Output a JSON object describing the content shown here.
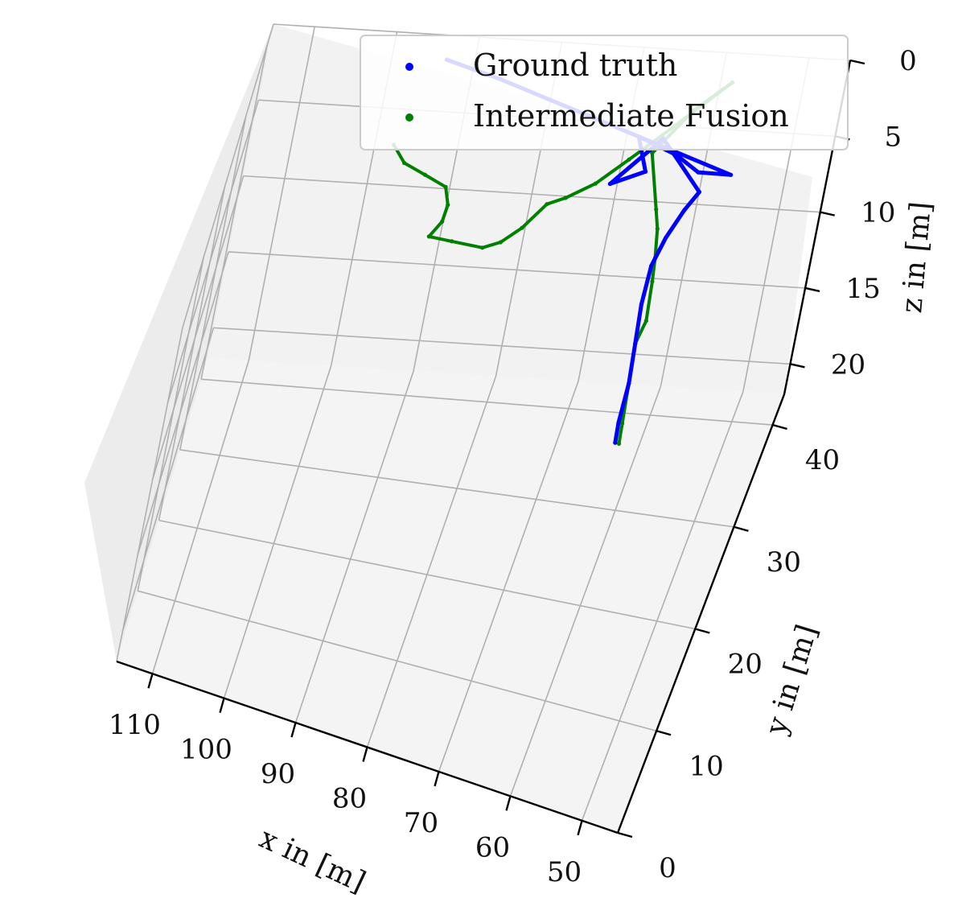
{
  "chart_data": {
    "type": "line3d",
    "title": "",
    "xlabel": "x in [m]",
    "ylabel": "y in [m]",
    "zlabel": "z in [m]",
    "x_ticks": [
      "110",
      "100",
      "90",
      "80",
      "70",
      "60",
      "50"
    ],
    "y_ticks": [
      "0",
      "10",
      "20",
      "30",
      "40"
    ],
    "z_ticks": [
      "0",
      "5",
      "10",
      "15",
      "20"
    ],
    "grid": true,
    "legend_placement": "top-right",
    "series": [
      {
        "name": "Ground truth",
        "color": "#0000ff",
        "points": [
          [
            93,
            40,
            0
          ],
          [
            86,
            40,
            1
          ],
          [
            80,
            40,
            2
          ],
          [
            74,
            40,
            3
          ],
          [
            68,
            40,
            4
          ],
          [
            63,
            40,
            5
          ],
          [
            60,
            40,
            6
          ],
          [
            56,
            40,
            6
          ],
          [
            68,
            40,
            4
          ],
          [
            66,
            38,
            5
          ],
          [
            70,
            38,
            6
          ],
          [
            65,
            40,
            4
          ],
          [
            62,
            39,
            5
          ],
          [
            59,
            38,
            6
          ],
          [
            60,
            36,
            6
          ],
          [
            61,
            33,
            6
          ],
          [
            61.5,
            30,
            6
          ],
          [
            61,
            26,
            6
          ],
          [
            60,
            22,
            6
          ],
          [
            59,
            18,
            6
          ],
          [
            58.5,
            14,
            6
          ],
          [
            58,
            12,
            6
          ]
        ]
      },
      {
        "name": "Intermediate Fusion",
        "color": "#008000",
        "points": [
          [
            96,
            29,
            0
          ],
          [
            94,
            27,
            0
          ],
          [
            91,
            26,
            0
          ],
          [
            88,
            25,
            0
          ],
          [
            87,
            23,
            0
          ],
          [
            87,
            21,
            0
          ],
          [
            88,
            19,
            0
          ],
          [
            85,
            19,
            0
          ],
          [
            81,
            19,
            0
          ],
          [
            79,
            20,
            0
          ],
          [
            77,
            22,
            0
          ],
          [
            75,
            25,
            0
          ],
          [
            73,
            26,
            0
          ],
          [
            70,
            28,
            0
          ],
          [
            67,
            31,
            0
          ],
          [
            64,
            34,
            0
          ],
          [
            58,
            40,
            0
          ],
          [
            62,
            40,
            2
          ],
          [
            66,
            40,
            5
          ],
          [
            64,
            39,
            8
          ],
          [
            63,
            37,
            8
          ],
          [
            62,
            34,
            8
          ],
          [
            61,
            30,
            7
          ],
          [
            60,
            26,
            7
          ],
          [
            60,
            22,
            6
          ],
          [
            59,
            18,
            6
          ],
          [
            58,
            14,
            6
          ],
          [
            57.5,
            12,
            6
          ]
        ]
      }
    ]
  }
}
